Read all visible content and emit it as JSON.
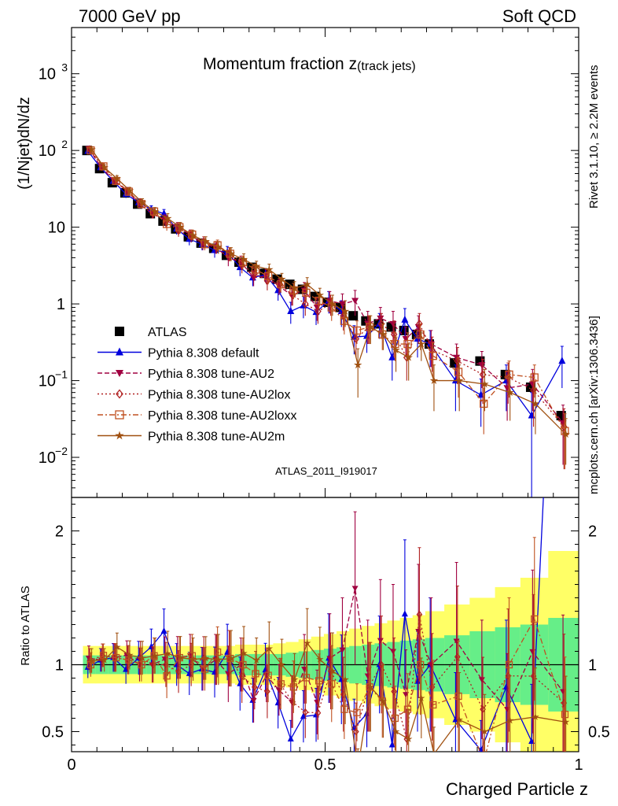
{
  "header": {
    "left": "7000 GeV pp",
    "right": "Soft QCD"
  },
  "side_labels": {
    "rivet": "Rivet 3.1.10, ≥ 2.2M events",
    "mcplots": "mcplots.cern.ch [arXiv:1306.3436]"
  },
  "chart_data": [
    {
      "type": "scatter",
      "title_main": "Momentum fraction z",
      "title_sub": "(track jets)",
      "analysis_label": "ATLAS_2011_I919017",
      "ylabel": "(1/Njet)dN/dz",
      "yscale": "log",
      "ylim": [
        0.003,
        4000
      ],
      "xlim": [
        0,
        1
      ],
      "x": [
        0.035,
        0.06,
        0.085,
        0.11,
        0.135,
        0.16,
        0.185,
        0.21,
        0.235,
        0.26,
        0.285,
        0.31,
        0.335,
        0.36,
        0.385,
        0.41,
        0.435,
        0.46,
        0.485,
        0.51,
        0.535,
        0.56,
        0.585,
        0.61,
        0.635,
        0.66,
        0.685,
        0.71,
        0.76,
        0.81,
        0.86,
        0.91,
        0.97
      ],
      "series": [
        {
          "name": "ATLAS",
          "color": "#000000",
          "marker": "square-filled",
          "line": "none",
          "values": [
            100,
            58,
            38,
            28,
            20,
            15,
            12,
            9.5,
            7.5,
            6.2,
            5.3,
            4.3,
            3.5,
            3.0,
            2.5,
            2.1,
            1.8,
            1.55,
            1.25,
            1.05,
            0.9,
            0.7,
            0.6,
            0.55,
            0.5,
            0.45,
            0.4,
            0.3,
            0.17,
            0.18,
            0.12,
            0.082,
            0.035
          ]
        },
        {
          "name": "Pythia 8.308 default",
          "color": "#0000dd",
          "marker": "triangle-up-filled",
          "line": "solid",
          "values": [
            98,
            60,
            40,
            27,
            21,
            17,
            15,
            9.5,
            7,
            6,
            5,
            4.7,
            3,
            2.2,
            2.4,
            1.5,
            0.8,
            0.95,
            0.78,
            1.1,
            0.8,
            0.37,
            0.38,
            0.55,
            0.2,
            0.62,
            0.35,
            0.3,
            0.1,
            0.065,
            0.1,
            0.035,
            0.18
          ],
          "err": [
            8,
            5,
            4,
            3,
            2.5,
            2,
            2,
            1.5,
            1.2,
            1,
            1,
            0.9,
            0.7,
            0.5,
            0.5,
            0.4,
            0.25,
            0.3,
            0.25,
            0.35,
            0.3,
            0.15,
            0.15,
            0.2,
            0.1,
            0.25,
            0.15,
            0.15,
            0.06,
            0.04,
            0.06,
            0.035,
            0.1
          ]
        },
        {
          "name": "Pythia 8.308 tune-AU2",
          "color": "#a00040",
          "marker": "triangle-down-filled",
          "line": "dashed",
          "values": [
            105,
            60,
            40,
            30,
            20,
            15,
            12.5,
            10,
            8,
            6,
            5.5,
            4,
            3.5,
            2.2,
            2.3,
            1.7,
            1.3,
            1.5,
            0.9,
            1.1,
            1.0,
            1.1,
            0.55,
            0.65,
            0.55,
            0.35,
            0.5,
            0.3,
            0.2,
            0.16,
            0.08,
            0.09,
            0.028
          ],
          "err": [
            9,
            5,
            4,
            3,
            2.5,
            2,
            2,
            1.5,
            1.2,
            1,
            1,
            0.9,
            0.7,
            0.5,
            0.5,
            0.4,
            0.35,
            0.4,
            0.3,
            0.35,
            0.35,
            0.4,
            0.25,
            0.25,
            0.25,
            0.15,
            0.2,
            0.15,
            0.1,
            0.08,
            0.05,
            0.05,
            0.02
          ]
        },
        {
          "name": "Pythia 8.308 tune-AU2lox",
          "color": "#b02020",
          "marker": "diamond-open",
          "line": "dotted",
          "values": [
            103,
            62,
            40,
            29,
            21,
            15,
            12,
            9,
            7.5,
            6.5,
            5.5,
            4.5,
            3.2,
            2.5,
            2.0,
            1.8,
            1.3,
            1.0,
            0.8,
            1.0,
            0.7,
            0.35,
            0.5,
            0.55,
            0.4,
            0.2,
            0.55,
            0.25,
            0.18,
            0.12,
            0.11,
            0.075,
            0.025
          ],
          "err": [
            9,
            5,
            4,
            3,
            2.5,
            2,
            2,
            1.5,
            1.2,
            1,
            1,
            0.9,
            0.7,
            0.5,
            0.5,
            0.4,
            0.35,
            0.3,
            0.25,
            0.3,
            0.25,
            0.15,
            0.2,
            0.2,
            0.2,
            0.1,
            0.2,
            0.12,
            0.09,
            0.07,
            0.06,
            0.05,
            0.018
          ]
        },
        {
          "name": "Pythia 8.308 tune-AU2loxx",
          "color": "#c05020",
          "marker": "square-open",
          "line": "dashdot",
          "values": [
            100,
            62,
            40,
            29,
            20,
            16,
            11,
            10,
            8,
            6,
            5.8,
            4.5,
            3.5,
            2.8,
            2.3,
            1.8,
            1.5,
            1.4,
            1.1,
            0.9,
            0.6,
            0.45,
            0.5,
            0.4,
            0.3,
            0.3,
            0.4,
            0.21,
            0.13,
            0.05,
            0.12,
            0.11,
            0.022
          ],
          "err": [
            9,
            5,
            4,
            3,
            2.5,
            2,
            2,
            1.5,
            1.2,
            1,
            1,
            0.9,
            0.7,
            0.5,
            0.5,
            0.4,
            0.35,
            0.3,
            0.25,
            0.3,
            0.2,
            0.15,
            0.2,
            0.15,
            0.12,
            0.12,
            0.15,
            0.1,
            0.07,
            0.03,
            0.06,
            0.05,
            0.015
          ]
        },
        {
          "name": "Pythia 8.308 tune-AU2m",
          "color": "#a05010",
          "marker": "star",
          "line": "solid",
          "values": [
            103,
            60,
            43,
            30,
            21,
            16,
            13,
            10,
            7.8,
            6.5,
            5.5,
            4.5,
            3.8,
            3.1,
            2.8,
            2.1,
            1.6,
            1.8,
            1.3,
            1.0,
            0.8,
            0.16,
            0.5,
            0.4,
            0.25,
            0.2,
            0.3,
            0.1,
            0.1,
            0.09,
            0.07,
            0.05,
            0.02
          ],
          "err": [
            9,
            5,
            4,
            3,
            2.5,
            2,
            2,
            1.5,
            1.2,
            1,
            1,
            0.9,
            0.7,
            0.5,
            0.5,
            0.4,
            0.35,
            0.4,
            0.3,
            0.3,
            0.3,
            0.1,
            0.2,
            0.15,
            0.12,
            0.1,
            0.12,
            0.06,
            0.06,
            0.05,
            0.04,
            0.03,
            0.012
          ]
        }
      ]
    },
    {
      "type": "line",
      "ylabel": "Ratio to ATLAS",
      "xlabel": "Charged Particle z",
      "ylim": [
        0.35,
        2.25
      ],
      "xlim": [
        0,
        1
      ],
      "yticks": [
        "0.5",
        "1",
        "2"
      ],
      "xticks": [
        "0",
        "0.5",
        "1"
      ],
      "band_green": [
        0.07,
        0.07,
        0.07,
        0.07,
        0.07,
        0.07,
        0.07,
        0.07,
        0.07,
        0.07,
        0.07,
        0.07,
        0.08,
        0.08,
        0.08,
        0.08,
        0.09,
        0.1,
        0.11,
        0.12,
        0.13,
        0.14,
        0.15,
        0.16,
        0.17,
        0.18,
        0.19,
        0.2,
        0.22,
        0.25,
        0.28,
        0.3,
        0.35
      ],
      "band_yellow": [
        0.14,
        0.14,
        0.14,
        0.14,
        0.14,
        0.14,
        0.14,
        0.14,
        0.14,
        0.14,
        0.14,
        0.14,
        0.15,
        0.15,
        0.15,
        0.16,
        0.17,
        0.19,
        0.21,
        0.23,
        0.25,
        0.27,
        0.29,
        0.31,
        0.33,
        0.35,
        0.37,
        0.4,
        0.45,
        0.5,
        0.58,
        0.65,
        0.85
      ],
      "note": "ratio series = each Pythia series divided by ATLAS values"
    }
  ]
}
